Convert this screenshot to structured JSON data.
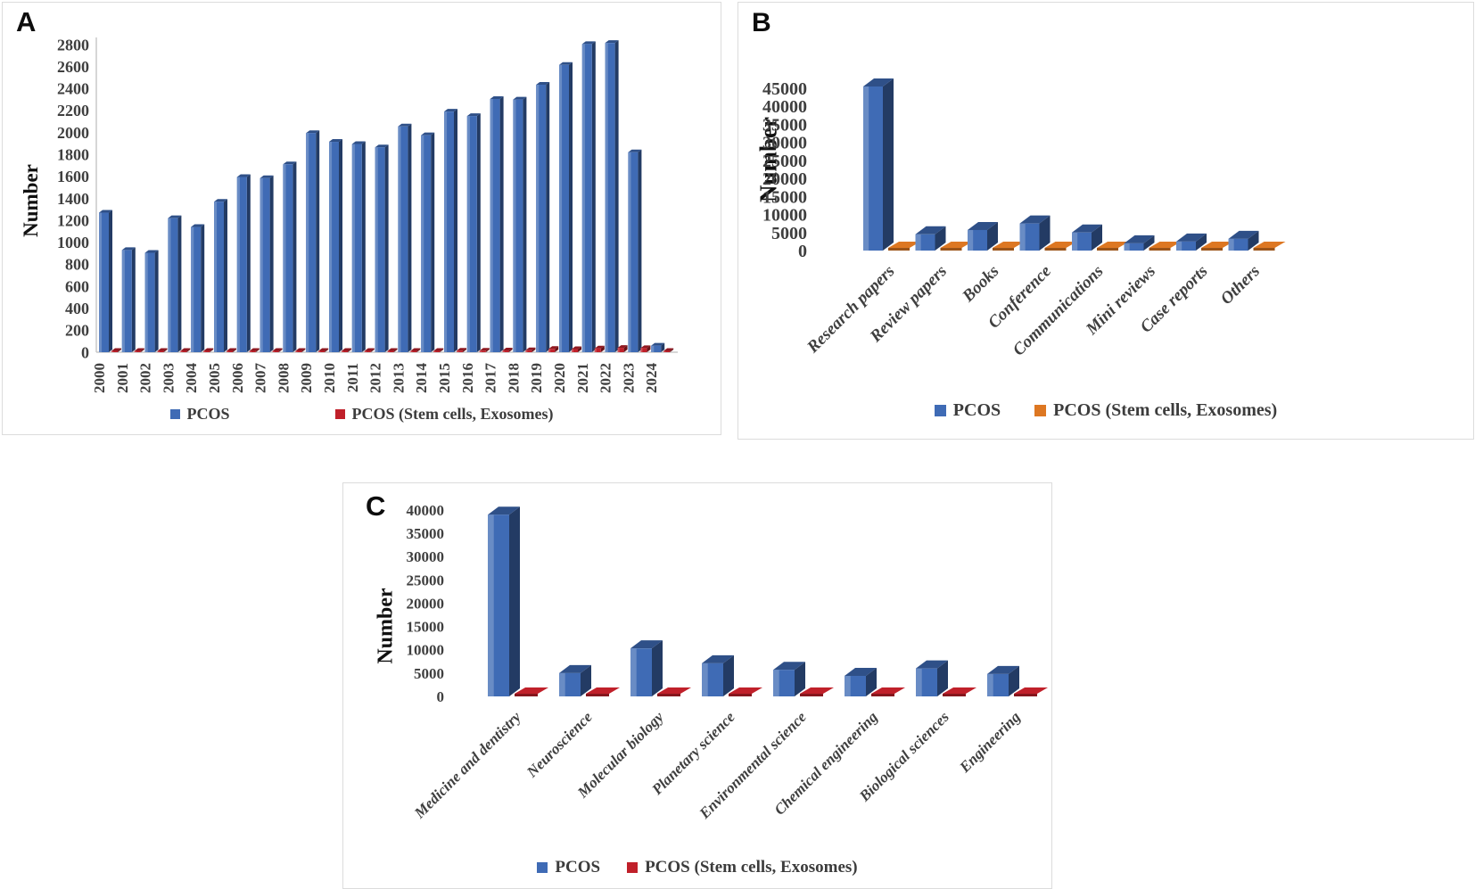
{
  "figure": {
    "description": "Three-panel bar figure of publication numbers",
    "y_axis_title": "Number"
  },
  "colors": {
    "pcos_blue": "#3f6bb5",
    "exo_red": "#c0202a",
    "exo_orange": "#dd7722",
    "axis_line": "#c8c8c8",
    "tick_text": "#3f3f3f",
    "panel_border": "#dcdcdc"
  },
  "chart_data": [
    {
      "id": "A",
      "panel_label": "A",
      "type": "bar",
      "ylabel": "Number",
      "ylim": [
        0,
        2800
      ],
      "ytick_step": 200,
      "grid": false,
      "legend_position": "bottom",
      "x_tick_rotation": -90,
      "categories": [
        "2000",
        "2001",
        "2002",
        "2003",
        "2004",
        "2005",
        "2006",
        "2007",
        "2008",
        "2009",
        "2010",
        "2011",
        "2012",
        "2013",
        "2014",
        "2015",
        "2016",
        "2017",
        "2018",
        "2019",
        "2020",
        "2021",
        "2022",
        "2023",
        "2024"
      ],
      "series": [
        {
          "name": "PCOS",
          "color_key": "pcos_blue",
          "values": [
            1270,
            930,
            905,
            1220,
            1140,
            1370,
            1595,
            1585,
            1710,
            1995,
            1915,
            1895,
            1865,
            2055,
            1975,
            2190,
            2150,
            2305,
            2300,
            2435,
            2615,
            2805,
            2815,
            1820,
            60
          ]
        },
        {
          "name": "PCOS (Stem cells, Exosomes)",
          "color_key": "exo_red",
          "values": [
            5,
            4,
            4,
            5,
            5,
            6,
            6,
            7,
            8,
            8,
            9,
            9,
            10,
            12,
            12,
            14,
            14,
            16,
            18,
            30,
            28,
            35,
            40,
            38,
            8
          ]
        }
      ]
    },
    {
      "id": "B",
      "panel_label": "B",
      "type": "bar",
      "ylabel": "Number",
      "ylim": [
        0,
        45000
      ],
      "ytick_step": 5000,
      "grid": false,
      "legend_position": "bottom",
      "x_tick_rotation": -45,
      "categories": [
        "Research papers",
        "Review papers",
        "Books",
        "Conference",
        "Communications",
        "Mini reviews",
        "Case reports",
        "Others"
      ],
      "series": [
        {
          "name": "PCOS",
          "color_key": "pcos_blue",
          "values": [
            45500,
            4500,
            5700,
            7500,
            5000,
            2000,
            2500,
            3250
          ]
        },
        {
          "name": "PCOS (Stem cells, Exosomes)",
          "color_key": "exo_orange",
          "values": [
            400,
            400,
            400,
            450,
            400,
            350,
            400,
            400
          ]
        }
      ]
    },
    {
      "id": "C",
      "panel_label": "C",
      "type": "bar",
      "ylabel": "Number",
      "ylim": [
        0,
        40000
      ],
      "ytick_step": 5000,
      "grid": false,
      "legend_position": "bottom",
      "x_tick_rotation": -45,
      "categories": [
        "Medicine and dentistry",
        "Neuroscience",
        "Molecular biology",
        "Planetary science",
        "Environmental science",
        "Chemical engineering",
        "Biological sciences",
        "Engineering"
      ],
      "series": [
        {
          "name": "PCOS",
          "color_key": "pcos_blue",
          "values": [
            39000,
            5000,
            10300,
            7100,
            5700,
            4400,
            6000,
            4800
          ]
        },
        {
          "name": "PCOS (Stem cells, Exosomes)",
          "color_key": "exo_red",
          "values": [
            600,
            550,
            650,
            600,
            550,
            500,
            550,
            500
          ]
        }
      ]
    }
  ]
}
